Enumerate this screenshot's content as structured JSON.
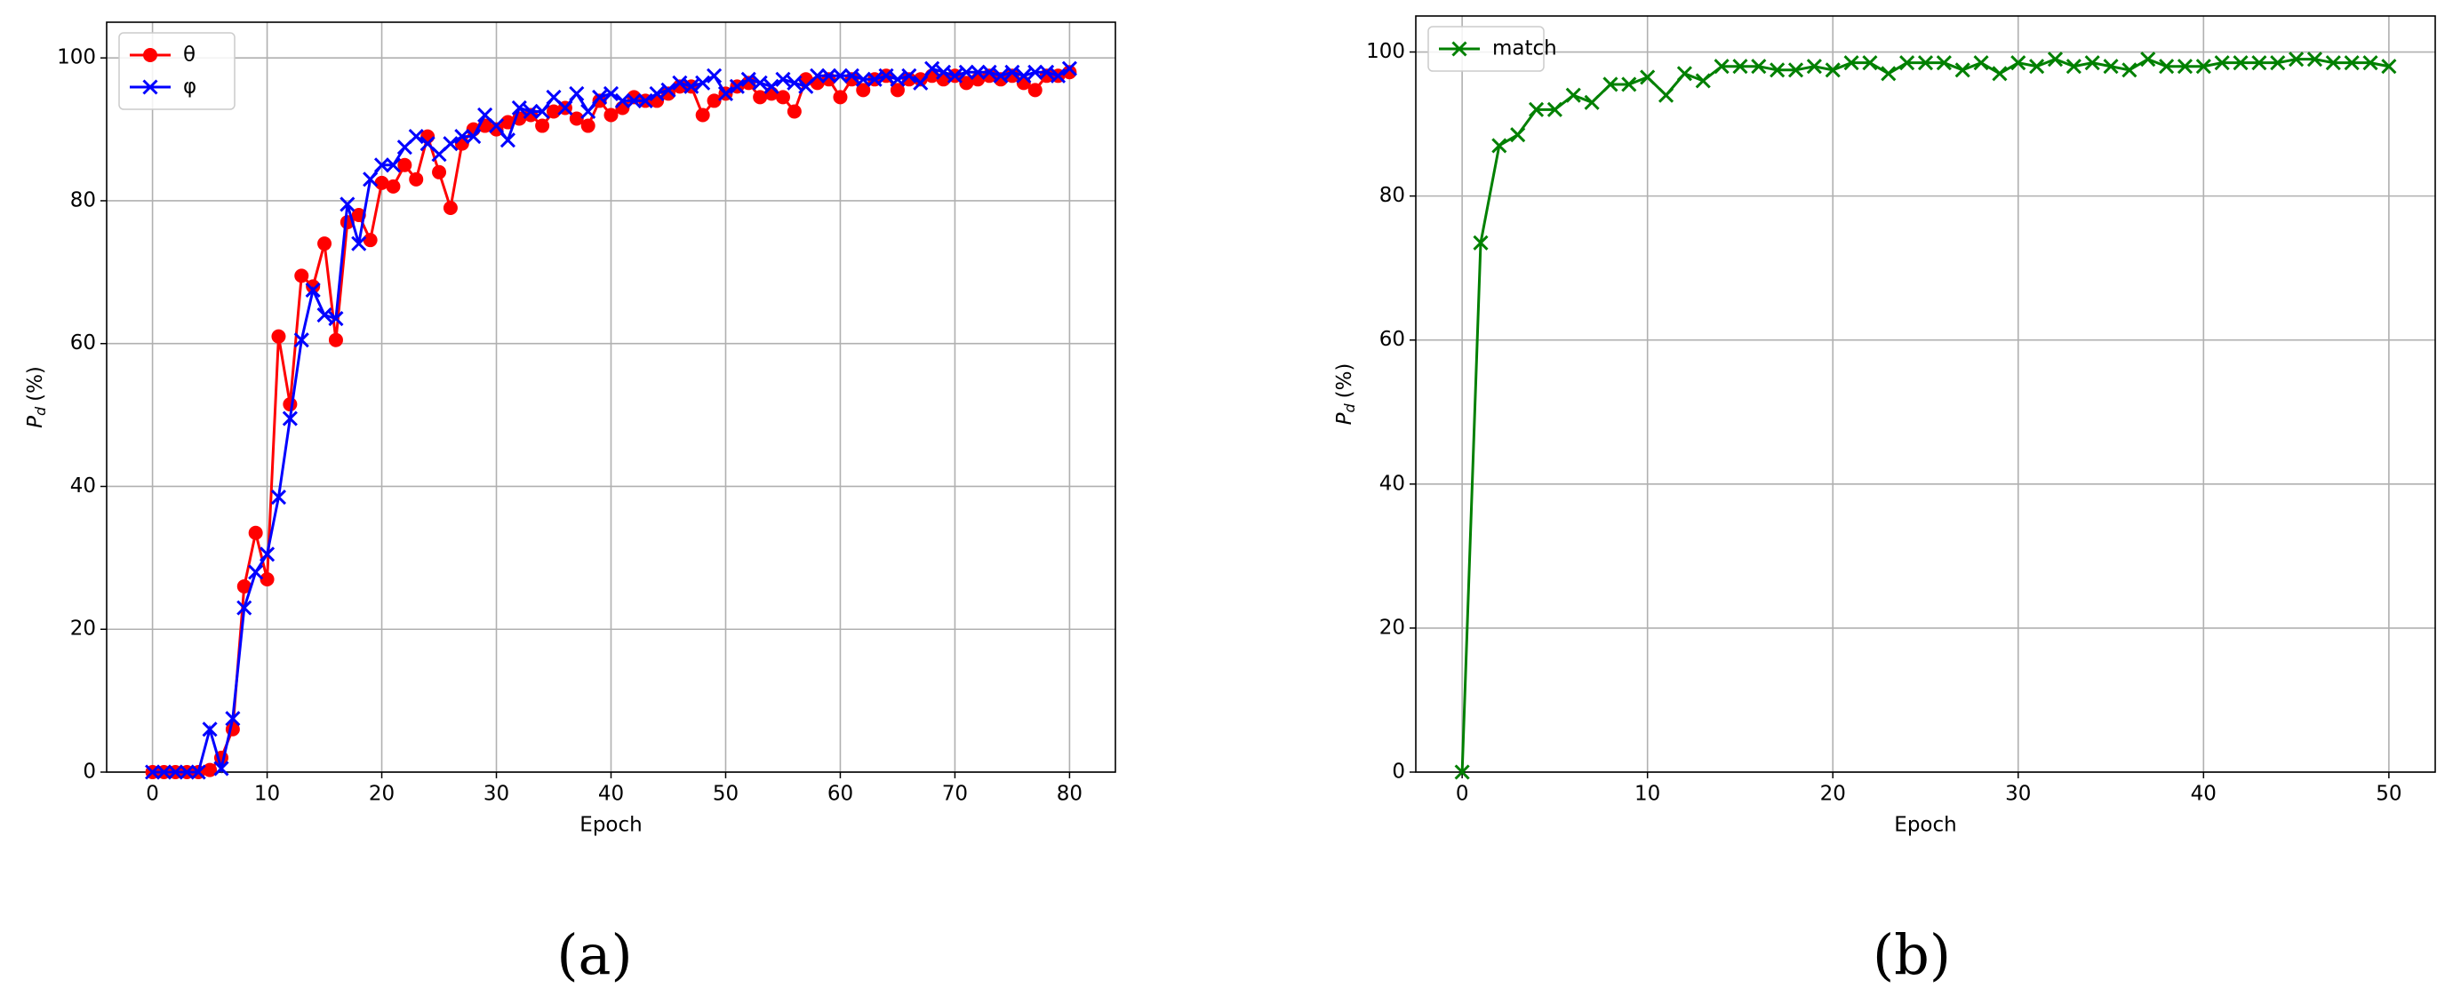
{
  "chart_data": [
    {
      "type": "line",
      "caption": "(a)",
      "xlabel": "Epoch",
      "ylabel": [
        "P",
        "d",
        "(%)"
      ],
      "x": [
        0,
        1,
        2,
        3,
        4,
        5,
        6,
        7,
        8,
        9,
        10,
        11,
        12,
        13,
        14,
        15,
        16,
        17,
        18,
        19,
        20,
        21,
        22,
        23,
        24,
        25,
        26,
        27,
        28,
        29,
        30,
        31,
        32,
        33,
        34,
        35,
        36,
        37,
        38,
        39,
        40,
        41,
        42,
        43,
        44,
        45,
        46,
        47,
        48,
        49,
        50,
        51,
        52,
        53,
        54,
        55,
        56,
        57,
        58,
        59,
        60,
        61,
        62,
        63,
        64,
        65,
        66,
        67,
        68,
        69,
        70,
        71,
        72,
        73,
        74,
        75,
        76,
        77,
        78,
        79,
        80
      ],
      "series": [
        {
          "name": "θ",
          "color": "#ff0000",
          "marker": "circle",
          "values": [
            0,
            0,
            0,
            0,
            0,
            0.3,
            2,
            6,
            26,
            33.5,
            27,
            61,
            51.5,
            69.5,
            68,
            74,
            60.5,
            77,
            78,
            74.5,
            82.5,
            82,
            85,
            83,
            89,
            84,
            79,
            88,
            90,
            90.5,
            90,
            91,
            91.5,
            92,
            90.5,
            92.5,
            93,
            91.5,
            90.5,
            94,
            92,
            93,
            94.5,
            94,
            94,
            95,
            96,
            96,
            92,
            94,
            95,
            96,
            96.5,
            94.5,
            95,
            94.5,
            92.5,
            97,
            96.5,
            97,
            94.5,
            97,
            95.5,
            97,
            97.5,
            95.5,
            97,
            97,
            97.5,
            97,
            97.5,
            96.5,
            97,
            97.5,
            97,
            97.5,
            96.5,
            95.5,
            97.5,
            97.5,
            98
          ]
        },
        {
          "name": "φ",
          "color": "#0000ff",
          "marker": "x",
          "values": [
            0,
            0,
            0,
            0,
            0,
            6,
            0.5,
            7.5,
            23,
            28,
            30.5,
            38.5,
            49.5,
            60.5,
            67.5,
            64,
            63.5,
            79.5,
            74,
            83,
            85,
            85,
            87.5,
            89,
            88,
            86.5,
            88,
            89,
            89,
            92,
            90.5,
            88.5,
            93,
            92.5,
            92.5,
            94.5,
            93,
            95,
            92.5,
            94.5,
            95,
            94,
            94,
            94,
            95,
            95.5,
            96.5,
            96,
            96.5,
            97.5,
            95,
            96,
            97,
            96.5,
            96,
            97,
            96.5,
            96,
            97.5,
            97.5,
            97.5,
            97.5,
            97,
            97,
            97.5,
            97,
            97.5,
            96.5,
            98.5,
            98,
            97.5,
            98,
            98,
            98,
            97.5,
            98,
            97.5,
            98,
            98,
            97.5,
            98.5
          ]
        }
      ],
      "xlim": [
        -4,
        84
      ],
      "xticks": [
        0,
        10,
        20,
        30,
        40,
        50,
        60,
        70,
        80
      ],
      "ylim": [
        0,
        105
      ],
      "yticks": [
        0,
        20,
        40,
        60,
        80,
        100
      ],
      "grid": true,
      "legend": "upper-left"
    },
    {
      "type": "line",
      "caption": "(b)",
      "xlabel": "Epoch",
      "ylabel": [
        "P",
        "d",
        "(%)"
      ],
      "x": [
        0,
        1,
        2,
        3,
        4,
        5,
        6,
        7,
        8,
        9,
        10,
        11,
        12,
        13,
        14,
        15,
        16,
        17,
        18,
        19,
        20,
        21,
        22,
        23,
        24,
        25,
        26,
        27,
        28,
        29,
        30,
        31,
        32,
        33,
        34,
        35,
        36,
        37,
        38,
        39,
        40,
        41,
        42,
        43,
        44,
        45,
        46,
        47,
        48,
        49,
        50
      ],
      "series": [
        {
          "name": "match",
          "color": "#008000",
          "marker": "x",
          "values": [
            0,
            73.5,
            87,
            88.5,
            92,
            92,
            94,
            93,
            95.5,
            95.5,
            96.5,
            94,
            97,
            96,
            98,
            98,
            98,
            97.5,
            97.5,
            98,
            97.5,
            98.5,
            98.5,
            97,
            98.5,
            98.5,
            98.5,
            97.5,
            98.5,
            97,
            98.5,
            98,
            99,
            98,
            98.5,
            98,
            97.5,
            99,
            98,
            98,
            98,
            98.5,
            98.5,
            98.5,
            98.5,
            99,
            99,
            98.5,
            98.5,
            98.5,
            98
          ]
        }
      ],
      "xlim": [
        -2.5,
        52.5
      ],
      "xticks": [
        0,
        10,
        20,
        30,
        40,
        50
      ],
      "ylim": [
        0,
        105
      ],
      "yticks": [
        0,
        20,
        40,
        60,
        80,
        100
      ],
      "grid": true,
      "legend": "upper-left"
    }
  ]
}
